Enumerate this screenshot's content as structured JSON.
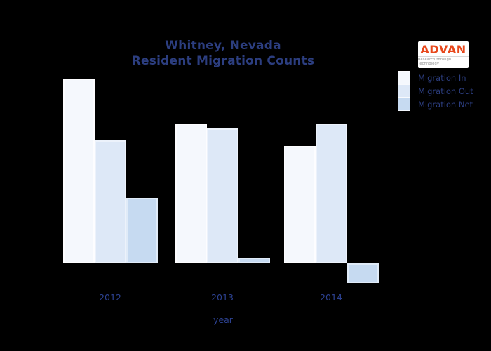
{
  "title": {
    "line1": "Whitney, Nevada",
    "line2": "Resident Migration Counts",
    "color": "#2c3e80"
  },
  "logo": {
    "brand": "ADVAN",
    "tagline": "Research through Technology",
    "brand_color": "#E8481C",
    "background": "#ffffff"
  },
  "legend": {
    "items": [
      {
        "label": "Migration In",
        "color": "#f5f8fd"
      },
      {
        "label": "Migration Out",
        "color": "#dde8f7"
      },
      {
        "label": "Migration Net",
        "color": "#c6daf1"
      }
    ]
  },
  "axes": {
    "xlabel": "year",
    "tick_color": "#2c4190"
  },
  "chart_data": {
    "type": "bar",
    "title": "Whitney, Nevada Resident Migration Counts",
    "categories": [
      "2012",
      "2013",
      "2014"
    ],
    "xlabel": "year",
    "ylabel": "",
    "units": "y-axis unlabeled in image; values are relative estimates (pixel scale)",
    "series": [
      {
        "name": "Migration In",
        "color": "#f5f8fd",
        "values": [
          263,
          199,
          167
        ]
      },
      {
        "name": "Migration Out",
        "color": "#dde8f7",
        "values": [
          175,
          192,
          199
        ]
      },
      {
        "name": "Migration Net",
        "color": "#c6daf1",
        "values": [
          93,
          8,
          -28
        ]
      }
    ],
    "ylim": [
      -40,
      280
    ],
    "grid": false,
    "axes_visible": false,
    "legend_position": "upper right",
    "background": "#000000"
  }
}
